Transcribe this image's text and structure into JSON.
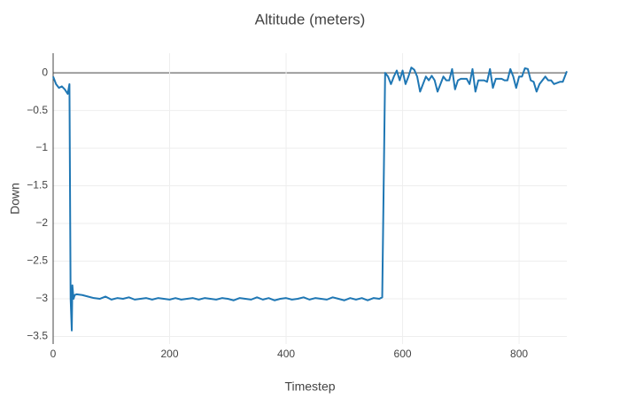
{
  "chart_data": {
    "type": "line",
    "title": "Altitude (meters)",
    "x_label": "Timestep",
    "y_label": "Down",
    "color": "#1f77b4",
    "grid": true,
    "xlim": [
      0,
      882
    ],
    "ylim": [
      -3.6,
      0.26
    ],
    "xticks": [
      0,
      200,
      400,
      600,
      800
    ],
    "yticks": [
      0,
      {
        "value": -0.5,
        "label": "−0.5"
      },
      {
        "value": -1,
        "label": "−1"
      },
      {
        "value": -1.5,
        "label": "−1.5"
      },
      {
        "value": -2,
        "label": "−2"
      },
      {
        "value": -2.5,
        "label": "−2.5"
      },
      {
        "value": -3,
        "label": "−3"
      },
      {
        "value": -3.5,
        "label": "−3.5"
      }
    ],
    "x": [
      0,
      5,
      10,
      15,
      20,
      25,
      28,
      30,
      32,
      33,
      35,
      37,
      40,
      50,
      60,
      70,
      80,
      90,
      100,
      110,
      120,
      130,
      140,
      150,
      160,
      170,
      180,
      190,
      200,
      210,
      220,
      230,
      240,
      250,
      260,
      270,
      280,
      290,
      300,
      310,
      320,
      330,
      340,
      350,
      360,
      370,
      380,
      390,
      400,
      410,
      420,
      430,
      440,
      450,
      460,
      470,
      480,
      490,
      500,
      510,
      520,
      530,
      540,
      550,
      560,
      565,
      570,
      575,
      580,
      585,
      590,
      595,
      600,
      605,
      610,
      615,
      620,
      625,
      630,
      635,
      640,
      645,
      650,
      655,
      660,
      665,
      670,
      675,
      680,
      685,
      690,
      695,
      700,
      710,
      715,
      720,
      725,
      730,
      740,
      745,
      750,
      755,
      760,
      770,
      775,
      780,
      785,
      790,
      795,
      800,
      805,
      810,
      815,
      820,
      825,
      830,
      835,
      840,
      845,
      850,
      855,
      860,
      870,
      875,
      882
    ],
    "values": [
      -0.05,
      -0.15,
      -0.2,
      -0.18,
      -0.22,
      -0.28,
      -0.15,
      -3.0,
      -3.42,
      -2.82,
      -3.0,
      -2.95,
      -2.94,
      -2.95,
      -2.97,
      -2.99,
      -3.0,
      -2.97,
      -3.01,
      -2.99,
      -3.0,
      -2.98,
      -3.01,
      -3.0,
      -2.99,
      -3.01,
      -2.99,
      -3.0,
      -3.01,
      -2.99,
      -3.01,
      -3.0,
      -2.99,
      -3.01,
      -2.99,
      -3.0,
      -3.01,
      -2.99,
      -3.0,
      -3.02,
      -2.99,
      -3.0,
      -3.01,
      -2.98,
      -3.01,
      -2.99,
      -3.02,
      -3.0,
      -2.99,
      -3.01,
      -3.0,
      -2.98,
      -3.01,
      -2.99,
      -3.0,
      -3.01,
      -2.98,
      -3.0,
      -3.02,
      -2.99,
      -3.01,
      -2.99,
      -3.02,
      -2.99,
      -3.0,
      -2.98,
      0,
      -0.05,
      -0.15,
      -0.05,
      0.03,
      -0.1,
      0.03,
      -0.15,
      -0.05,
      0.07,
      0.04,
      -0.05,
      -0.25,
      -0.15,
      -0.05,
      -0.1,
      -0.04,
      -0.1,
      -0.25,
      -0.15,
      -0.05,
      -0.1,
      -0.1,
      0.05,
      -0.22,
      -0.1,
      -0.08,
      -0.08,
      -0.15,
      0.05,
      -0.25,
      -0.1,
      -0.1,
      -0.12,
      0.05,
      -0.2,
      -0.08,
      -0.08,
      -0.1,
      -0.1,
      0.05,
      -0.05,
      -0.2,
      -0.05,
      -0.05,
      0.06,
      0.05,
      -0.1,
      -0.12,
      -0.25,
      -0.15,
      -0.1,
      -0.05,
      -0.1,
      -0.1,
      -0.15,
      -0.12,
      -0.12,
      0.02
    ]
  }
}
